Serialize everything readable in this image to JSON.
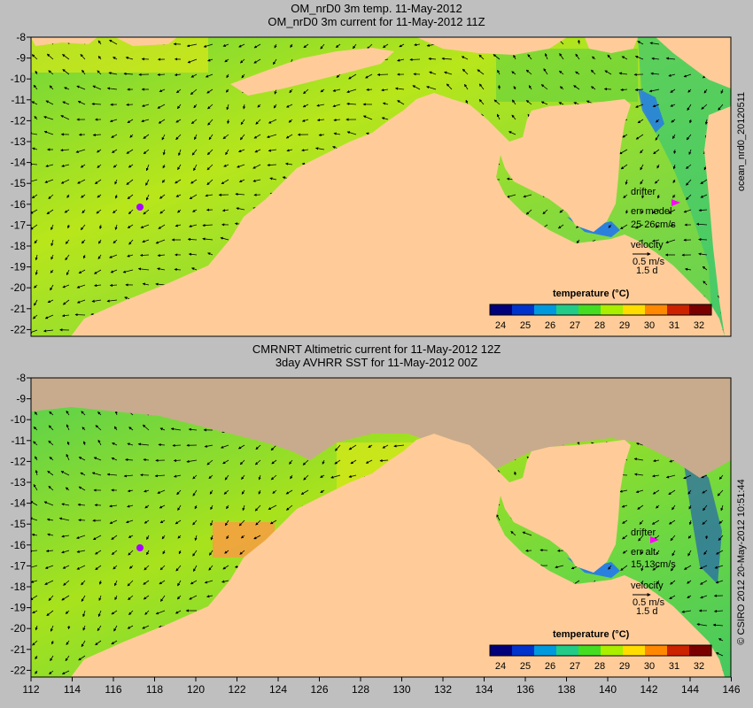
{
  "panel1": {
    "title_line1": "OM_nrD0 3m temp. 11-May-2012",
    "title_line2": "OM_nrD0 3m current for 11-May-2012 11Z",
    "drifter_label": "drifter",
    "err_label": "err model",
    "err_values": "25 26cm/s",
    "velocity_label": "velocity",
    "velocity_scale": "0.5 m/s",
    "velocity_time": "1.5 d",
    "colorbar_title": "temperature (°C)",
    "side_label": "ocean_nrd0_20120511"
  },
  "panel2": {
    "title_line1": "CMRNRT Altimetric current for 11-May-2012 12Z",
    "title_line2": "3day AVHRR SST for 11-May-2012 00Z",
    "drifter_label": "drifter",
    "err_label": "err alt",
    "err_values": "15 13cm/s",
    "velocity_label": "velocity",
    "velocity_scale": "0.5 m/s",
    "velocity_time": "1.5 d",
    "colorbar_title": "temperature (°C)",
    "side_label": "© CSIRO 2012   20-May-2012 10:51:44"
  },
  "lat_ticks": [
    "-8",
    "-9",
    "-10",
    "-11",
    "-12",
    "-13",
    "-14",
    "-15",
    "-16",
    "-17",
    "-18",
    "-19",
    "-20",
    "-21",
    "-22"
  ],
  "lon_ticks": [
    "112",
    "114",
    "116",
    "118",
    "120",
    "122",
    "124",
    "126",
    "128",
    "130",
    "132",
    "134",
    "136",
    "138",
    "140",
    "142",
    "144",
    "146"
  ],
  "colorbar_ticks": [
    "24",
    "25",
    "26",
    "27",
    "28",
    "29",
    "30",
    "31",
    "32"
  ],
  "colorbar_colors": [
    "#00007a",
    "#0033cc",
    "#0099dd",
    "#22cc88",
    "#44dd22",
    "#aaee00",
    "#ffdd00",
    "#ff8800",
    "#cc2200",
    "#7a0000"
  ],
  "colors": {
    "land": "#ffcc99",
    "land_masked": "#c8ab8c",
    "ocean_green": "#7fdc3a",
    "ocean_yellow": "#d8ea10",
    "background": "#bfbfbf"
  }
}
